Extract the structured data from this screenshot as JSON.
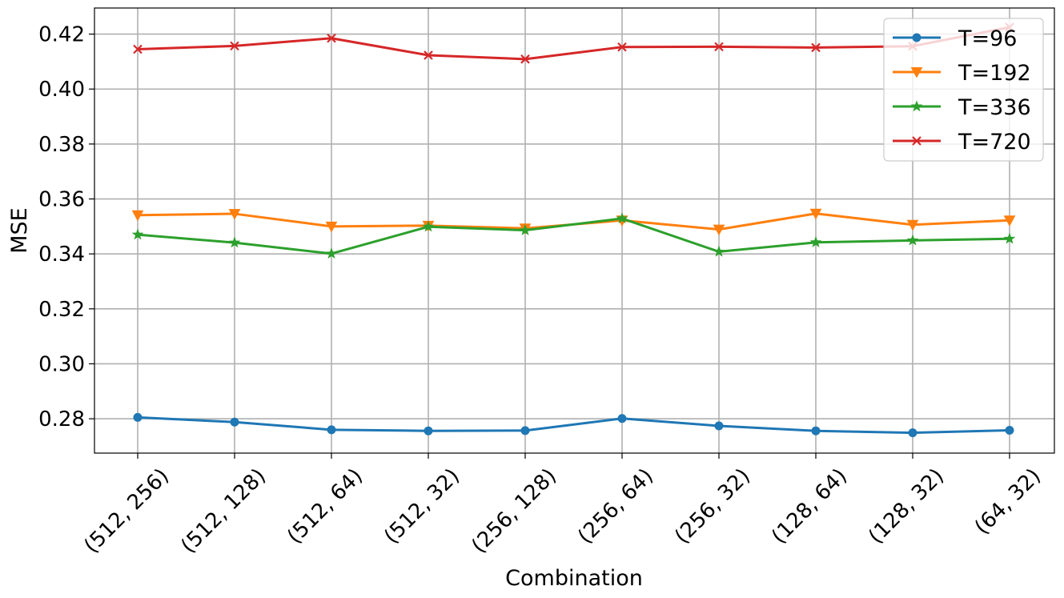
{
  "chart_data": {
    "type": "line",
    "title": "",
    "xlabel": "Combination",
    "ylabel": "MSE",
    "categories": [
      "(512, 256)",
      "(512, 128)",
      "(512, 64)",
      "(512, 32)",
      "(256, 128)",
      "(256, 64)",
      "(256, 32)",
      "(128, 64)",
      "(128, 32)",
      "(64, 32)"
    ],
    "ylim": [
      0.2675,
      0.4295
    ],
    "yticks": [
      0.28,
      0.3,
      0.32,
      0.34,
      0.36,
      0.38,
      0.4,
      0.42
    ],
    "ytick_labels": [
      "0.28",
      "0.30",
      "0.32",
      "0.34",
      "0.36",
      "0.38",
      "0.40",
      "0.42"
    ],
    "grid": true,
    "legend_position": "top-right",
    "series": [
      {
        "name": "T=96",
        "color": "#1f77b4",
        "marker": "circle",
        "values": [
          0.2805,
          0.2788,
          0.276,
          0.2756,
          0.2757,
          0.2801,
          0.2774,
          0.2756,
          0.2749,
          0.2758
        ]
      },
      {
        "name": "T=192",
        "color": "#ff7f0e",
        "marker": "triangle-down",
        "values": [
          0.3541,
          0.3546,
          0.35,
          0.3503,
          0.3493,
          0.3522,
          0.3489,
          0.3547,
          0.3506,
          0.3522
        ]
      },
      {
        "name": "T=336",
        "color": "#2ca02c",
        "marker": "star",
        "values": [
          0.347,
          0.3441,
          0.3401,
          0.3499,
          0.3486,
          0.3529,
          0.3408,
          0.3442,
          0.3449,
          0.3455
        ]
      },
      {
        "name": "T=720",
        "color": "#d62728",
        "marker": "x",
        "values": [
          0.4145,
          0.4157,
          0.4185,
          0.4123,
          0.4109,
          0.4153,
          0.4154,
          0.4151,
          0.4156,
          0.4225
        ]
      }
    ]
  }
}
